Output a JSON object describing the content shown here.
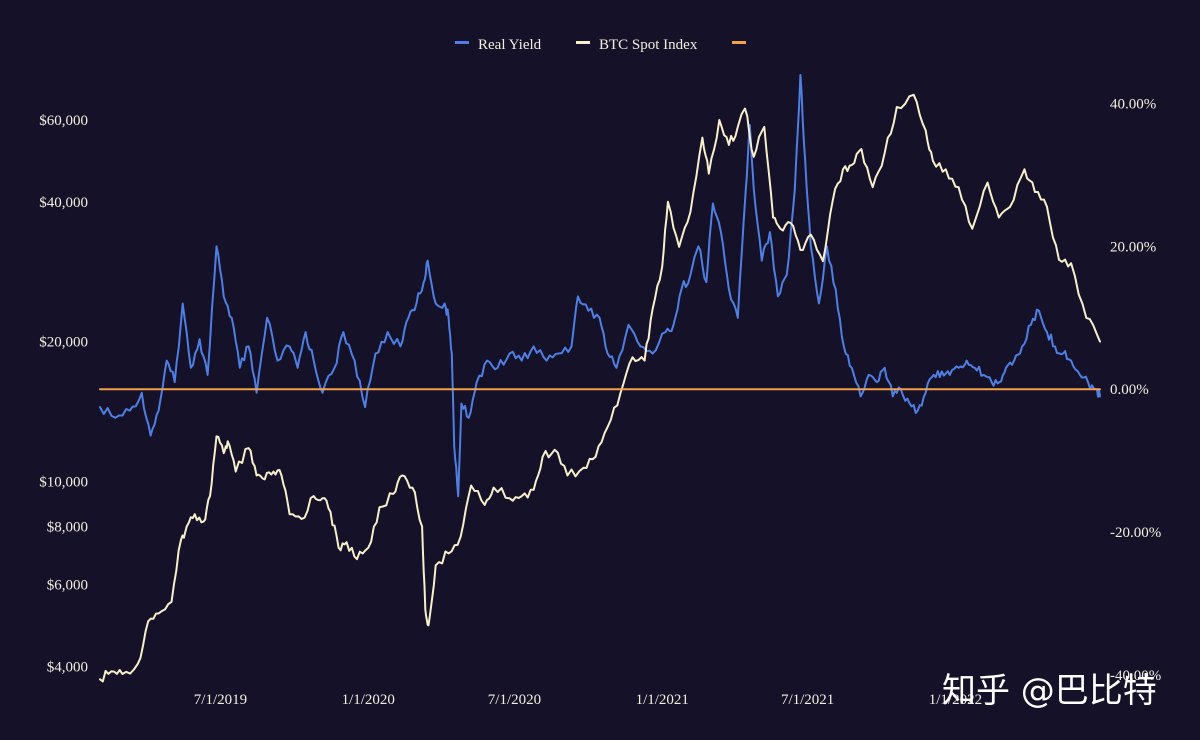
{
  "chart_data": {
    "type": "line",
    "title": "",
    "legend_position": "top-center",
    "grid": false,
    "x_range": [
      "2019-02-01",
      "2022-06-30"
    ],
    "x_ticks": [
      {
        "date": "2019-07-01",
        "label": "7/1/2019"
      },
      {
        "date": "2020-01-01",
        "label": "1/1/2020"
      },
      {
        "date": "2020-07-01",
        "label": "7/1/2020"
      },
      {
        "date": "2021-01-01",
        "label": "1/1/2021"
      },
      {
        "date": "2021-07-01",
        "label": "7/1/2021"
      },
      {
        "date": "2022-01-01",
        "label": "1/1/2022"
      }
    ],
    "y_left": {
      "scale": "log",
      "range": [
        3700,
        75000
      ],
      "ticks": [
        {
          "value": 4000,
          "label": "$4,000"
        },
        {
          "value": 6000,
          "label": "$6,000"
        },
        {
          "value": 8000,
          "label": "$8,000"
        },
        {
          "value": 10000,
          "label": "$10,000"
        },
        {
          "value": 20000,
          "label": "$20,000"
        },
        {
          "value": 40000,
          "label": "$40,000"
        },
        {
          "value": 60000,
          "label": "$60,000"
        }
      ]
    },
    "y_right": {
      "scale": "linear",
      "range": [
        -41,
        44
      ],
      "ticks": [
        {
          "value": 40,
          "label": "40.00%"
        },
        {
          "value": 20,
          "label": "20.00%"
        },
        {
          "value": 0,
          "label": "0.00%"
        },
        {
          "value": -20,
          "label": "-20.00%"
        },
        {
          "value": -40,
          "label": "-40.00%"
        }
      ]
    },
    "series": [
      {
        "name": "Real Yield",
        "axis": "right",
        "color": "#4f7fe3",
        "points": [
          [
            "2019-02-01",
            -2.5
          ],
          [
            "2019-02-20",
            -4
          ],
          [
            "2019-03-10",
            -3
          ],
          [
            "2019-03-25",
            -0.5
          ],
          [
            "2019-04-05",
            -6.5
          ],
          [
            "2019-04-15",
            -3
          ],
          [
            "2019-04-25",
            4
          ],
          [
            "2019-05-05",
            1
          ],
          [
            "2019-05-15",
            12
          ],
          [
            "2019-05-25",
            3
          ],
          [
            "2019-06-05",
            7
          ],
          [
            "2019-06-15",
            2
          ],
          [
            "2019-06-26",
            20
          ],
          [
            "2019-07-05",
            13
          ],
          [
            "2019-07-15",
            10
          ],
          [
            "2019-07-25",
            3
          ],
          [
            "2019-08-05",
            6
          ],
          [
            "2019-08-15",
            -0.5
          ],
          [
            "2019-08-28",
            10
          ],
          [
            "2019-09-10",
            4
          ],
          [
            "2019-09-25",
            6
          ],
          [
            "2019-10-05",
            3
          ],
          [
            "2019-10-15",
            8
          ],
          [
            "2019-10-25",
            4
          ],
          [
            "2019-11-05",
            -0.5
          ],
          [
            "2019-11-20",
            3
          ],
          [
            "2019-12-01",
            8
          ],
          [
            "2019-12-15",
            4
          ],
          [
            "2019-12-28",
            -2.5
          ],
          [
            "2020-01-10",
            5
          ],
          [
            "2020-01-25",
            8
          ],
          [
            "2020-02-10",
            6
          ],
          [
            "2020-02-20",
            10
          ],
          [
            "2020-03-01",
            12
          ],
          [
            "2020-03-10",
            15
          ],
          [
            "2020-03-15",
            18
          ],
          [
            "2020-03-25",
            12
          ],
          [
            "2020-04-05",
            12
          ],
          [
            "2020-04-10",
            10
          ],
          [
            "2020-04-14",
            5
          ],
          [
            "2020-04-17",
            -8
          ],
          [
            "2020-04-22",
            -15
          ],
          [
            "2020-04-26",
            -2
          ],
          [
            "2020-05-05",
            -4
          ],
          [
            "2020-05-15",
            1
          ],
          [
            "2020-05-28",
            4
          ],
          [
            "2020-06-10",
            3
          ],
          [
            "2020-06-25",
            5
          ],
          [
            "2020-07-10",
            4
          ],
          [
            "2020-07-25",
            6
          ],
          [
            "2020-08-10",
            4
          ],
          [
            "2020-08-25",
            5
          ],
          [
            "2020-09-10",
            6
          ],
          [
            "2020-09-18",
            13
          ],
          [
            "2020-10-01",
            11
          ],
          [
            "2020-10-15",
            10
          ],
          [
            "2020-10-25",
            5
          ],
          [
            "2020-11-05",
            3
          ],
          [
            "2020-11-20",
            9
          ],
          [
            "2020-12-05",
            6
          ],
          [
            "2020-12-20",
            5
          ],
          [
            "2021-01-05",
            8
          ],
          [
            "2021-01-15",
            9
          ],
          [
            "2021-01-25",
            14
          ],
          [
            "2021-02-05",
            16
          ],
          [
            "2021-02-15",
            20
          ],
          [
            "2021-02-25",
            15
          ],
          [
            "2021-03-05",
            26
          ],
          [
            "2021-03-15",
            22
          ],
          [
            "2021-03-25",
            14
          ],
          [
            "2021-04-05",
            10
          ],
          [
            "2021-04-15",
            28
          ],
          [
            "2021-04-20",
            37
          ],
          [
            "2021-04-25",
            28
          ],
          [
            "2021-05-05",
            18
          ],
          [
            "2021-05-15",
            22
          ],
          [
            "2021-05-25",
            13
          ],
          [
            "2021-06-05",
            16
          ],
          [
            "2021-06-15",
            28
          ],
          [
            "2021-06-22",
            44
          ],
          [
            "2021-06-28",
            32
          ],
          [
            "2021-07-05",
            20
          ],
          [
            "2021-07-15",
            12
          ],
          [
            "2021-07-25",
            20
          ],
          [
            "2021-08-05",
            14
          ],
          [
            "2021-08-15",
            6
          ],
          [
            "2021-08-25",
            3
          ],
          [
            "2021-09-05",
            -1
          ],
          [
            "2021-09-15",
            2
          ],
          [
            "2021-09-25",
            1
          ],
          [
            "2021-10-05",
            3
          ],
          [
            "2021-10-15",
            -1
          ],
          [
            "2021-10-25",
            0
          ],
          [
            "2021-11-05",
            -2
          ],
          [
            "2021-11-15",
            -3
          ],
          [
            "2021-11-25",
            -0.5
          ],
          [
            "2021-12-05",
            2
          ],
          [
            "2021-12-15",
            2.5
          ],
          [
            "2021-12-25",
            2
          ],
          [
            "2022-01-05",
            3
          ],
          [
            "2022-01-15",
            4
          ],
          [
            "2022-01-25",
            3
          ],
          [
            "2022-02-05",
            2
          ],
          [
            "2022-02-15",
            1
          ],
          [
            "2022-02-25",
            1
          ],
          [
            "2022-03-05",
            3
          ],
          [
            "2022-03-15",
            4
          ],
          [
            "2022-03-25",
            6
          ],
          [
            "2022-04-05",
            9
          ],
          [
            "2022-04-15",
            11
          ],
          [
            "2022-04-25",
            8
          ],
          [
            "2022-05-05",
            6
          ],
          [
            "2022-05-15",
            5
          ],
          [
            "2022-05-25",
            4
          ],
          [
            "2022-06-05",
            2
          ],
          [
            "2022-06-15",
            1
          ],
          [
            "2022-06-25",
            0
          ],
          [
            "2022-06-30",
            -1
          ]
        ]
      },
      {
        "name": "BTC Spot Index",
        "axis": "left",
        "color": "#f8efcc",
        "points": [
          [
            "2019-02-01",
            3750
          ],
          [
            "2019-02-15",
            3900
          ],
          [
            "2019-03-01",
            3850
          ],
          [
            "2019-03-20",
            4050
          ],
          [
            "2019-04-02",
            5000
          ],
          [
            "2019-04-15",
            5200
          ],
          [
            "2019-05-01",
            5500
          ],
          [
            "2019-05-13",
            7500
          ],
          [
            "2019-05-20",
            8000
          ],
          [
            "2019-05-30",
            8500
          ],
          [
            "2019-06-10",
            8200
          ],
          [
            "2019-06-18",
            9300
          ],
          [
            "2019-06-26",
            12500
          ],
          [
            "2019-07-05",
            11500
          ],
          [
            "2019-07-10",
            12200
          ],
          [
            "2019-07-20",
            10500
          ],
          [
            "2019-08-05",
            11800
          ],
          [
            "2019-08-15",
            10300
          ],
          [
            "2019-08-25",
            10100
          ],
          [
            "2019-09-05",
            10500
          ],
          [
            "2019-09-15",
            10300
          ],
          [
            "2019-09-25",
            8500
          ],
          [
            "2019-10-10",
            8300
          ],
          [
            "2019-10-25",
            9300
          ],
          [
            "2019-11-05",
            9200
          ],
          [
            "2019-11-15",
            8600
          ],
          [
            "2019-11-25",
            7200
          ],
          [
            "2019-12-05",
            7400
          ],
          [
            "2019-12-18",
            6800
          ],
          [
            "2020-01-01",
            7200
          ],
          [
            "2020-01-15",
            8800
          ],
          [
            "2020-02-01",
            9400
          ],
          [
            "2020-02-12",
            10300
          ],
          [
            "2020-02-25",
            9700
          ],
          [
            "2020-03-08",
            8000
          ],
          [
            "2020-03-12",
            5300
          ],
          [
            "2020-03-16",
            4900
          ],
          [
            "2020-03-25",
            6600
          ],
          [
            "2020-04-10",
            7000
          ],
          [
            "2020-04-25",
            7600
          ],
          [
            "2020-05-08",
            9800
          ],
          [
            "2020-05-25",
            8900
          ],
          [
            "2020-06-05",
            9700
          ],
          [
            "2020-06-25",
            9200
          ],
          [
            "2020-07-10",
            9300
          ],
          [
            "2020-07-25",
            9600
          ],
          [
            "2020-08-05",
            11300
          ],
          [
            "2020-08-20",
            11700
          ],
          [
            "2020-09-05",
            10300
          ],
          [
            "2020-09-25",
            10700
          ],
          [
            "2020-10-10",
            11300
          ],
          [
            "2020-10-25",
            13100
          ],
          [
            "2020-11-10",
            15500
          ],
          [
            "2020-11-25",
            18500
          ],
          [
            "2020-12-10",
            18200
          ],
          [
            "2020-12-20",
            23500
          ],
          [
            "2021-01-01",
            29000
          ],
          [
            "2021-01-08",
            40000
          ],
          [
            "2021-01-22",
            32000
          ],
          [
            "2021-02-05",
            38000
          ],
          [
            "2021-02-20",
            55000
          ],
          [
            "2021-02-28",
            46000
          ],
          [
            "2021-03-13",
            60000
          ],
          [
            "2021-03-25",
            53000
          ],
          [
            "2021-04-05",
            58000
          ],
          [
            "2021-04-14",
            63500
          ],
          [
            "2021-04-25",
            50000
          ],
          [
            "2021-05-08",
            58000
          ],
          [
            "2021-05-19",
            37000
          ],
          [
            "2021-05-28",
            35000
          ],
          [
            "2021-06-10",
            36000
          ],
          [
            "2021-06-22",
            31500
          ],
          [
            "2021-07-05",
            34000
          ],
          [
            "2021-07-20",
            29800
          ],
          [
            "2021-08-01",
            40000
          ],
          [
            "2021-08-14",
            47000
          ],
          [
            "2021-08-25",
            48000
          ],
          [
            "2021-09-06",
            52000
          ],
          [
            "2021-09-20",
            43000
          ],
          [
            "2021-10-05",
            51000
          ],
          [
            "2021-10-20",
            64000
          ],
          [
            "2021-11-10",
            68000
          ],
          [
            "2021-11-25",
            57000
          ],
          [
            "2021-12-04",
            49000
          ],
          [
            "2021-12-20",
            47000
          ],
          [
            "2022-01-05",
            43000
          ],
          [
            "2022-01-22",
            35000
          ],
          [
            "2022-02-10",
            44000
          ],
          [
            "2022-02-24",
            37000
          ],
          [
            "2022-03-10",
            39000
          ],
          [
            "2022-03-28",
            47000
          ],
          [
            "2022-04-10",
            42000
          ],
          [
            "2022-04-25",
            39000
          ],
          [
            "2022-05-10",
            30000
          ],
          [
            "2022-05-25",
            29500
          ],
          [
            "2022-06-13",
            22500
          ],
          [
            "2022-06-30",
            20000
          ]
        ]
      },
      {
        "name": "",
        "axis": "right",
        "color": "#f3a14b",
        "points": [
          [
            "2019-02-01",
            0
          ],
          [
            "2022-06-30",
            0
          ]
        ]
      }
    ]
  },
  "watermark": "知乎 @巴比特"
}
